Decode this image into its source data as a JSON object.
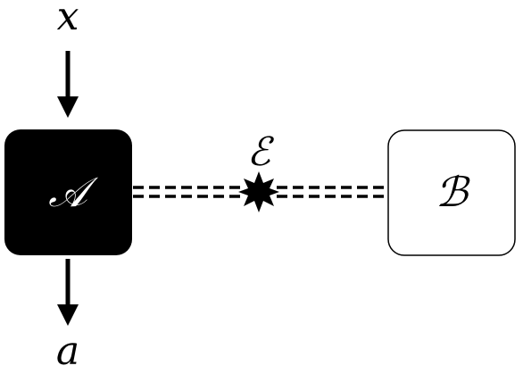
{
  "diagram": {
    "input_label": "x",
    "output_label": "a",
    "box_a": {
      "label": "𝒜",
      "fill": "#000000",
      "text_color": "#ffffff"
    },
    "box_b": {
      "label": "ℬ",
      "fill": "#ffffff",
      "text_color": "#000000"
    },
    "entanglement": {
      "label": "ℰ",
      "icon": "star-burst-icon"
    },
    "colors": {
      "stroke": "#000000",
      "background": "#ffffff"
    }
  }
}
